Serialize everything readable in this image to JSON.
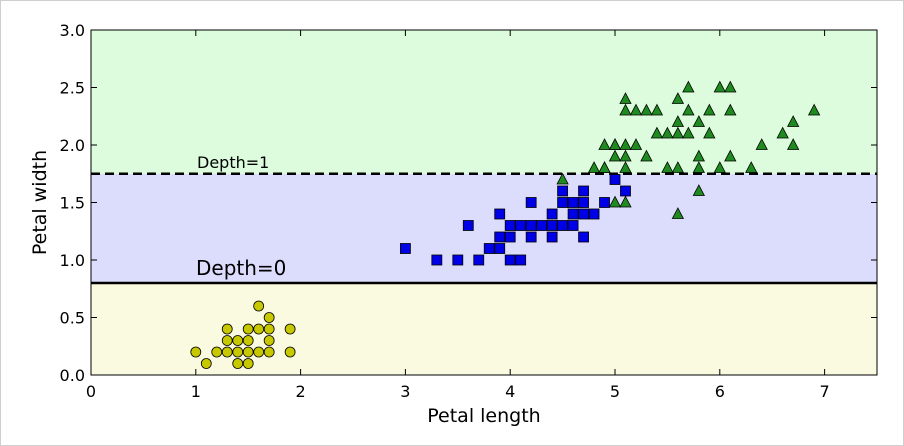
{
  "chart_data": {
    "type": "scatter",
    "title": "",
    "xlabel": "Petal length",
    "ylabel": "Petal width",
    "xlim": [
      0,
      7.5
    ],
    "ylim": [
      0,
      3.0
    ],
    "grid": false,
    "x_ticks": [
      "0",
      "1",
      "2",
      "3",
      "4",
      "5",
      "6",
      "7"
    ],
    "y_ticks": [
      "0.0",
      "0.5",
      "1.0",
      "1.5",
      "2.0",
      "2.5",
      "3.0"
    ],
    "regions": [
      {
        "y_range": [
          0,
          0.8
        ],
        "color": "#fafae0"
      },
      {
        "y_range": [
          0.8,
          1.75
        ],
        "color": "#dcdcfc"
      },
      {
        "y_range": [
          1.75,
          3.0
        ],
        "color": "#ddfbdd"
      }
    ],
    "thresholds": [
      {
        "y": 0.8,
        "style": "solid",
        "label": "Depth=0"
      },
      {
        "y": 1.75,
        "style": "dashed",
        "label": "Depth=1"
      }
    ],
    "series": [
      {
        "marker": "circle",
        "color": "#c8c800",
        "points": [
          [
            1.0,
            0.2
          ],
          [
            1.1,
            0.1
          ],
          [
            1.2,
            0.2
          ],
          [
            1.3,
            0.2
          ],
          [
            1.3,
            0.3
          ],
          [
            1.3,
            0.4
          ],
          [
            1.4,
            0.1
          ],
          [
            1.4,
            0.2
          ],
          [
            1.4,
            0.3
          ],
          [
            1.5,
            0.1
          ],
          [
            1.5,
            0.2
          ],
          [
            1.5,
            0.3
          ],
          [
            1.5,
            0.4
          ],
          [
            1.6,
            0.2
          ],
          [
            1.6,
            0.4
          ],
          [
            1.6,
            0.6
          ],
          [
            1.7,
            0.2
          ],
          [
            1.7,
            0.3
          ],
          [
            1.7,
            0.4
          ],
          [
            1.7,
            0.5
          ],
          [
            1.9,
            0.2
          ],
          [
            1.9,
            0.4
          ]
        ]
      },
      {
        "marker": "square",
        "color": "#0000e6",
        "points": [
          [
            3.0,
            1.1
          ],
          [
            3.3,
            1.0
          ],
          [
            3.5,
            1.0
          ],
          [
            3.6,
            1.3
          ],
          [
            3.7,
            1.0
          ],
          [
            3.8,
            1.1
          ],
          [
            3.9,
            1.1
          ],
          [
            3.9,
            1.2
          ],
          [
            3.9,
            1.4
          ],
          [
            4.0,
            1.0
          ],
          [
            4.0,
            1.2
          ],
          [
            4.0,
            1.3
          ],
          [
            4.1,
            1.0
          ],
          [
            4.1,
            1.3
          ],
          [
            4.2,
            1.2
          ],
          [
            4.2,
            1.3
          ],
          [
            4.2,
            1.5
          ],
          [
            4.3,
            1.3
          ],
          [
            4.4,
            1.2
          ],
          [
            4.4,
            1.3
          ],
          [
            4.4,
            1.4
          ],
          [
            4.5,
            1.3
          ],
          [
            4.5,
            1.5
          ],
          [
            4.5,
            1.6
          ],
          [
            4.6,
            1.3
          ],
          [
            4.6,
            1.4
          ],
          [
            4.6,
            1.5
          ],
          [
            4.7,
            1.2
          ],
          [
            4.7,
            1.4
          ],
          [
            4.7,
            1.5
          ],
          [
            4.7,
            1.6
          ],
          [
            4.8,
            1.4
          ],
          [
            4.9,
            1.5
          ],
          [
            5.0,
            1.7
          ],
          [
            5.1,
            1.6
          ]
        ]
      },
      {
        "marker": "triangle",
        "color": "#1f8a1f",
        "points": [
          [
            4.5,
            1.7
          ],
          [
            4.8,
            1.8
          ],
          [
            4.9,
            1.8
          ],
          [
            5.0,
            1.9
          ],
          [
            5.0,
            2.0
          ],
          [
            5.1,
            1.5
          ],
          [
            5.0,
            1.5
          ],
          [
            5.1,
            1.8
          ],
          [
            5.1,
            1.9
          ],
          [
            5.1,
            2.0
          ],
          [
            5.1,
            2.3
          ],
          [
            5.1,
            2.4
          ],
          [
            4.9,
            2.0
          ],
          [
            5.2,
            2.0
          ],
          [
            5.2,
            2.3
          ],
          [
            5.3,
            1.9
          ],
          [
            5.3,
            2.3
          ],
          [
            5.4,
            2.1
          ],
          [
            5.4,
            2.3
          ],
          [
            5.5,
            1.8
          ],
          [
            5.5,
            2.1
          ],
          [
            5.6,
            1.4
          ],
          [
            5.6,
            1.8
          ],
          [
            5.6,
            2.1
          ],
          [
            5.6,
            2.2
          ],
          [
            5.6,
            2.4
          ],
          [
            5.7,
            2.1
          ],
          [
            5.7,
            2.3
          ],
          [
            5.7,
            2.5
          ],
          [
            5.8,
            1.6
          ],
          [
            5.8,
            1.8
          ],
          [
            5.8,
            2.2
          ],
          [
            5.9,
            2.1
          ],
          [
            5.9,
            2.3
          ],
          [
            6.0,
            1.8
          ],
          [
            6.0,
            2.5
          ],
          [
            6.1,
            1.9
          ],
          [
            6.1,
            2.3
          ],
          [
            6.1,
            2.5
          ],
          [
            6.3,
            1.8
          ],
          [
            6.4,
            2.0
          ],
          [
            6.6,
            2.1
          ],
          [
            6.7,
            2.0
          ],
          [
            6.7,
            2.2
          ],
          [
            6.9,
            2.3
          ],
          [
            5.8,
            1.9
          ],
          [
            4.9,
            1.8
          ],
          [
            5.0,
            2.0
          ]
        ]
      }
    ]
  }
}
